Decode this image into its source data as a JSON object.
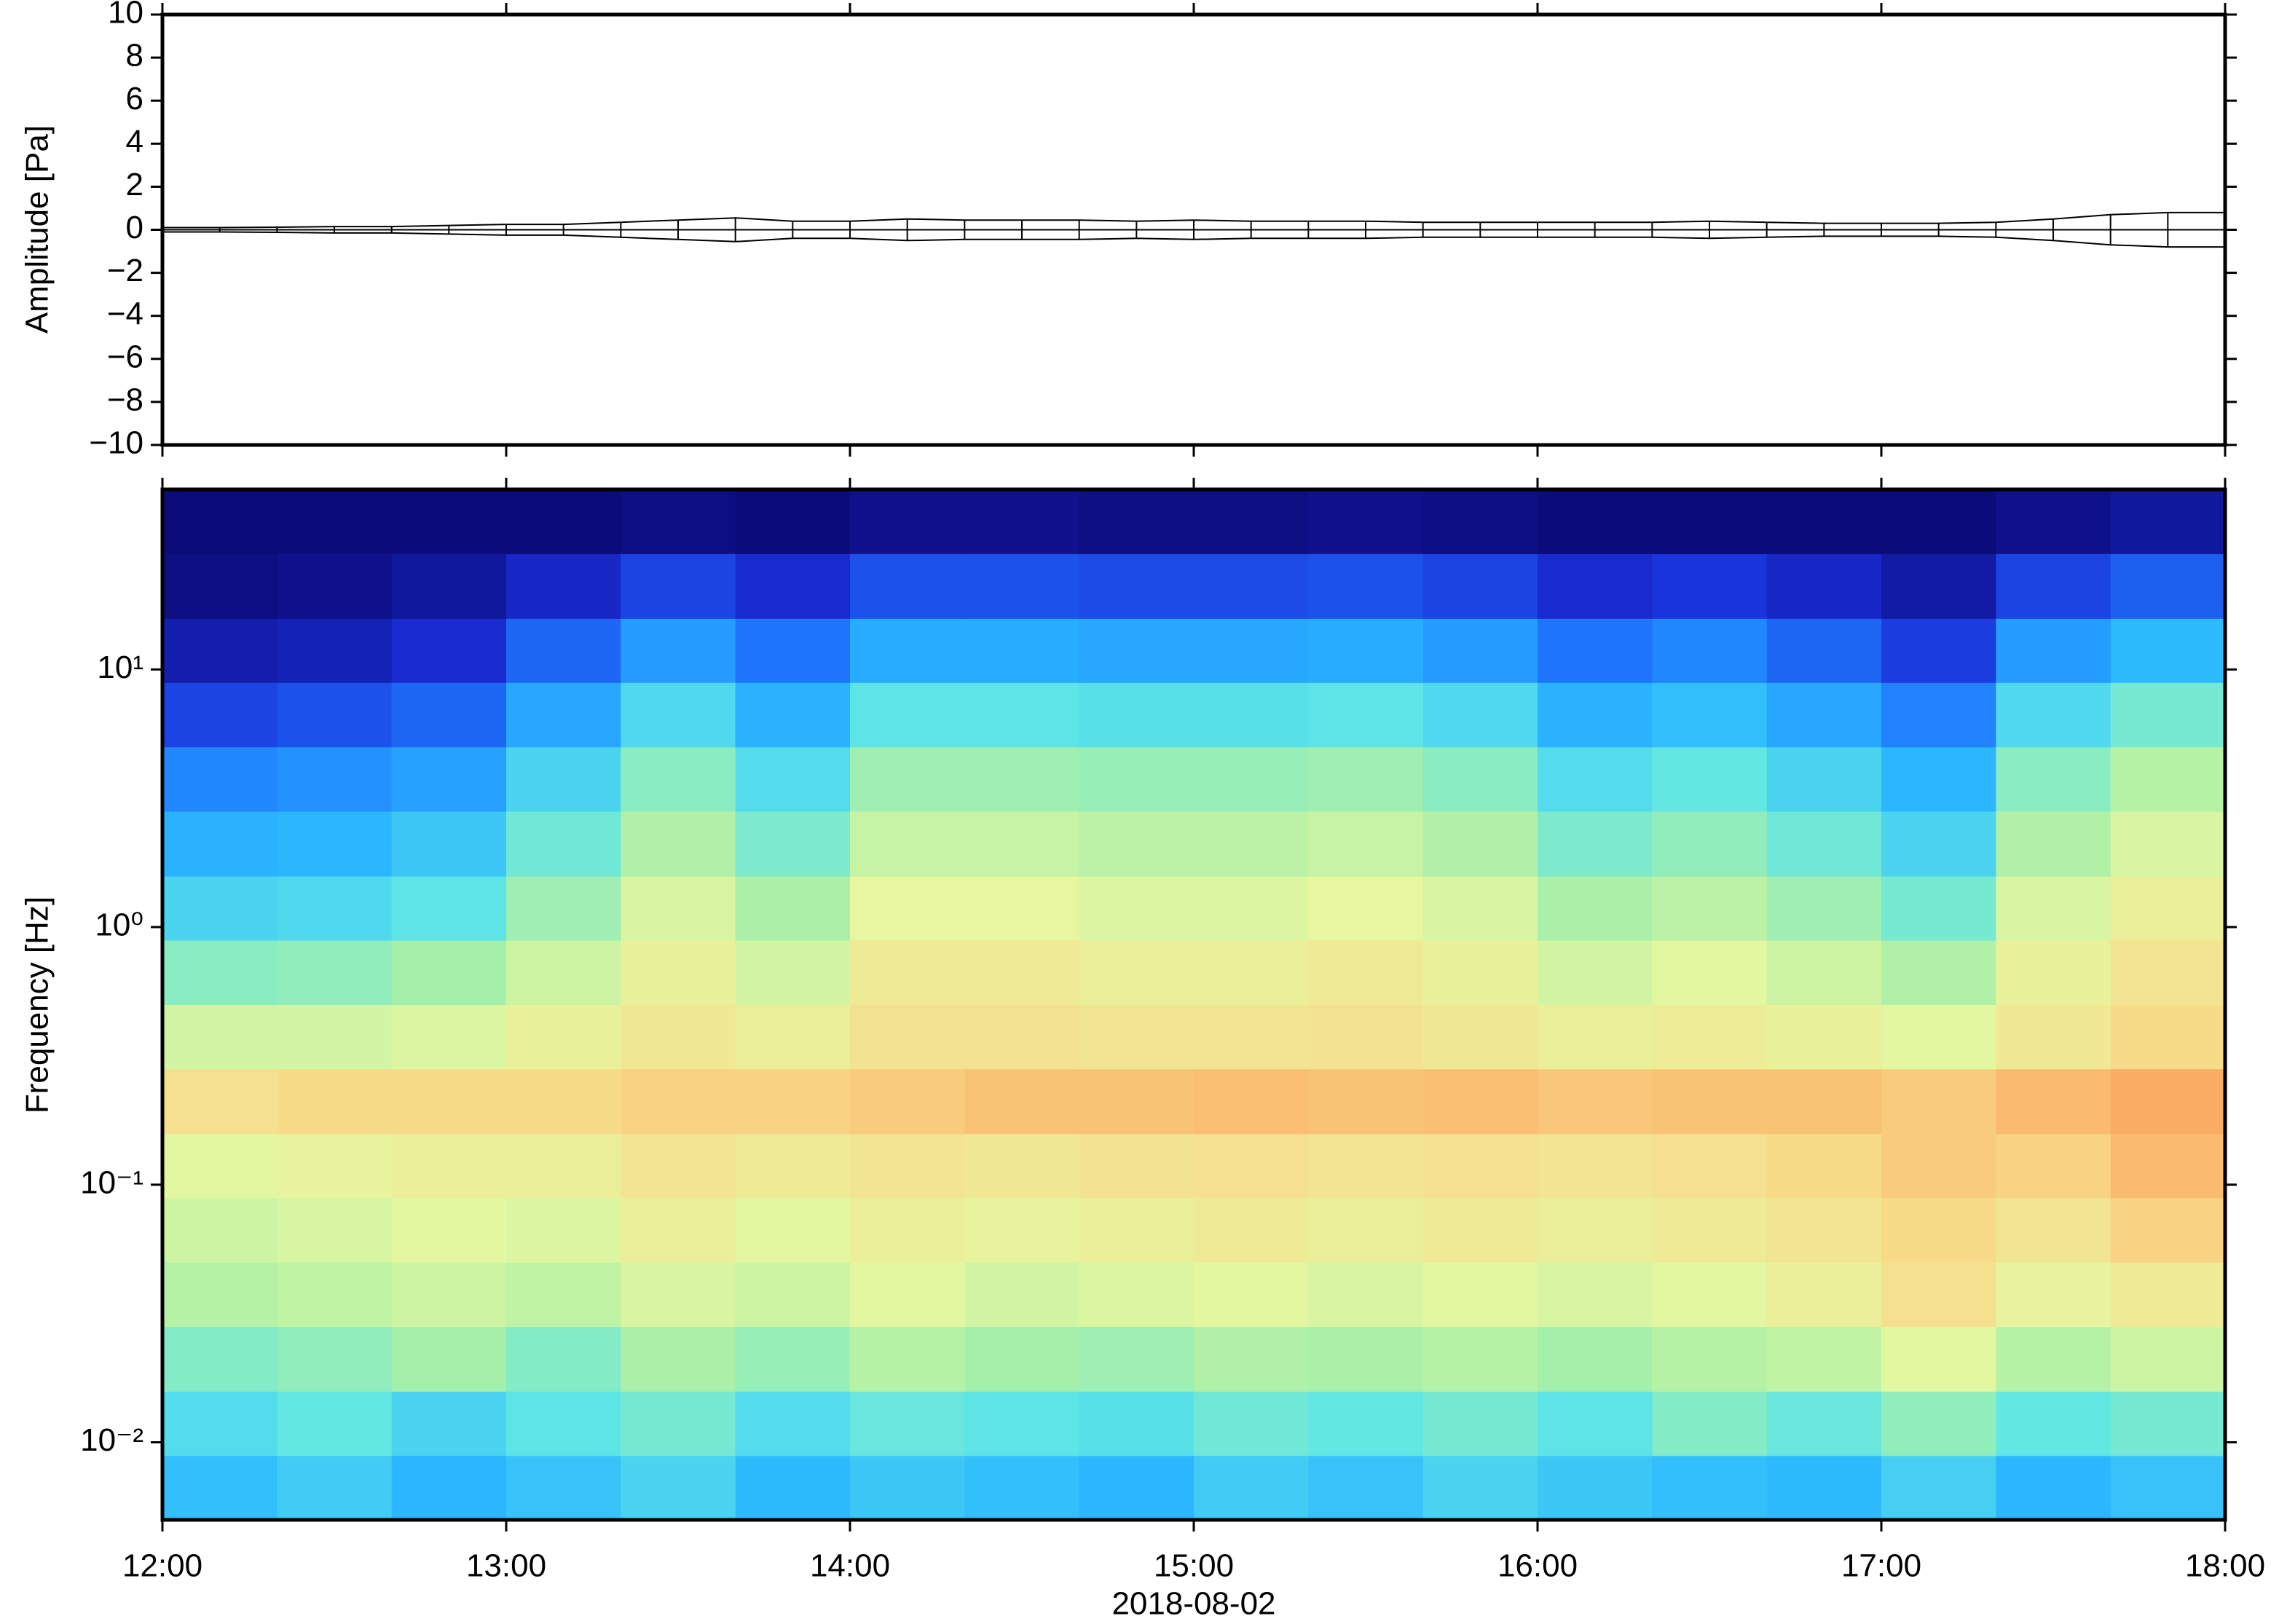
{
  "chart_data": [
    {
      "type": "envelope",
      "ylabel": "Amplitude [Pa]",
      "color": "#000000",
      "x": [
        "12:00",
        "12:10",
        "12:20",
        "12:30",
        "12:40",
        "12:50",
        "13:00",
        "13:10",
        "13:20",
        "13:30",
        "13:40",
        "13:50",
        "14:00",
        "14:10",
        "14:20",
        "14:30",
        "14:40",
        "14:50",
        "15:00",
        "15:10",
        "15:20",
        "15:30",
        "15:40",
        "15:50",
        "16:00",
        "16:10",
        "16:20",
        "16:30",
        "16:40",
        "16:50",
        "17:00",
        "17:10",
        "17:20",
        "17:30",
        "17:40",
        "17:50",
        "18:00"
      ],
      "values": [
        0.1,
        0.1,
        0.12,
        0.15,
        0.15,
        0.2,
        0.25,
        0.25,
        0.35,
        0.45,
        0.55,
        0.4,
        0.4,
        0.5,
        0.45,
        0.45,
        0.45,
        0.4,
        0.45,
        0.4,
        0.4,
        0.4,
        0.35,
        0.35,
        0.35,
        0.35,
        0.35,
        0.4,
        0.35,
        0.3,
        0.3,
        0.3,
        0.35,
        0.5,
        0.7,
        0.8,
        0.8
      ],
      "xlim": [
        "12:00",
        "18:00"
      ],
      "xticks": [
        "12:00",
        "13:00",
        "14:00",
        "15:00",
        "16:00",
        "17:00",
        "18:00"
      ],
      "ylim": [
        -10,
        10
      ],
      "yticks": [
        {
          "value": -10,
          "label": "−10"
        },
        {
          "value": -8,
          "label": "−8"
        },
        {
          "value": -6,
          "label": "−6"
        },
        {
          "value": -4,
          "label": "−4"
        },
        {
          "value": -2,
          "label": "−2"
        },
        0,
        2,
        4,
        6,
        8,
        10
      ]
    },
    {
      "type": "heatmap",
      "ylabel": "Frequency [Hz]",
      "xlabel": "2018-08-02",
      "logy": true,
      "x": [
        "12:00",
        "12:20",
        "12:40",
        "13:00",
        "13:20",
        "13:40",
        "14:00",
        "14:20",
        "14:40",
        "15:00",
        "15:20",
        "15:40",
        "16:00",
        "16:20",
        "16:40",
        "17:00",
        "17:20",
        "17:40",
        "18:00"
      ],
      "y_bins": [
        0.005,
        0.0089,
        0.0158,
        0.0282,
        0.0501,
        0.0891,
        0.158,
        0.282,
        0.501,
        0.891,
        1.58,
        2.82,
        5.01,
        8.91,
        15.8,
        28.2,
        50.1
      ],
      "colormap": [
        "#0b0b7a",
        "#1a2fd8",
        "#1f7eff",
        "#2bb8ff",
        "#5fe6e6",
        "#a8f0a8",
        "#e6f7a0",
        "#f7dc8a",
        "#fbb067",
        "#f07a4a"
      ],
      "z": [
        [
          0.35,
          0.38,
          0.33,
          0.36,
          0.4,
          0.34,
          0.37,
          0.35,
          0.33,
          0.38,
          0.36,
          0.4,
          0.37,
          0.35,
          0.34,
          0.39,
          0.33,
          0.36
        ],
        [
          0.42,
          0.45,
          0.4,
          0.44,
          0.48,
          0.42,
          0.46,
          0.44,
          0.43,
          0.47,
          0.45,
          0.48,
          0.44,
          0.5,
          0.46,
          0.52,
          0.45,
          0.48
        ],
        [
          0.5,
          0.52,
          0.55,
          0.5,
          0.56,
          0.53,
          0.58,
          0.55,
          0.54,
          0.57,
          0.56,
          0.58,
          0.55,
          0.58,
          0.6,
          0.66,
          0.58,
          0.62
        ],
        [
          0.58,
          0.6,
          0.62,
          0.6,
          0.64,
          0.62,
          0.66,
          0.63,
          0.65,
          0.66,
          0.64,
          0.66,
          0.64,
          0.66,
          0.7,
          0.76,
          0.68,
          0.72
        ],
        [
          0.62,
          0.64,
          0.66,
          0.65,
          0.7,
          0.66,
          0.7,
          0.68,
          0.7,
          0.72,
          0.7,
          0.72,
          0.7,
          0.72,
          0.74,
          0.78,
          0.74,
          0.8
        ],
        [
          0.66,
          0.68,
          0.7,
          0.7,
          0.74,
          0.72,
          0.74,
          0.73,
          0.75,
          0.76,
          0.74,
          0.76,
          0.74,
          0.76,
          0.78,
          0.82,
          0.8,
          0.86
        ],
        [
          0.76,
          0.78,
          0.78,
          0.78,
          0.8,
          0.8,
          0.82,
          0.84,
          0.84,
          0.85,
          0.84,
          0.85,
          0.83,
          0.84,
          0.84,
          0.82,
          0.86,
          0.9
        ],
        [
          0.63,
          0.63,
          0.65,
          0.69,
          0.73,
          0.7,
          0.75,
          0.75,
          0.74,
          0.74,
          0.75,
          0.73,
          0.7,
          0.71,
          0.69,
          0.66,
          0.73,
          0.78
        ],
        [
          0.51,
          0.52,
          0.55,
          0.62,
          0.69,
          0.63,
          0.72,
          0.72,
          0.7,
          0.7,
          0.72,
          0.69,
          0.63,
          0.66,
          0.62,
          0.57,
          0.69,
          0.74
        ],
        [
          0.4,
          0.41,
          0.44,
          0.54,
          0.64,
          0.56,
          0.67,
          0.67,
          0.65,
          0.65,
          0.67,
          0.64,
          0.56,
          0.59,
          0.54,
          0.48,
          0.64,
          0.7
        ],
        [
          0.32,
          0.33,
          0.37,
          0.47,
          0.57,
          0.49,
          0.61,
          0.61,
          0.59,
          0.59,
          0.61,
          0.57,
          0.49,
          0.52,
          0.47,
          0.4,
          0.57,
          0.64
        ],
        [
          0.24,
          0.26,
          0.29,
          0.4,
          0.51,
          0.42,
          0.54,
          0.54,
          0.53,
          0.53,
          0.54,
          0.51,
          0.42,
          0.45,
          0.4,
          0.33,
          0.51,
          0.58
        ],
        [
          0.14,
          0.16,
          0.19,
          0.3,
          0.41,
          0.32,
          0.44,
          0.44,
          0.43,
          0.43,
          0.44,
          0.41,
          0.32,
          0.35,
          0.3,
          0.23,
          0.41,
          0.48
        ],
        [
          0.06,
          0.07,
          0.1,
          0.19,
          0.28,
          0.21,
          0.31,
          0.31,
          0.3,
          0.3,
          0.31,
          0.28,
          0.21,
          0.24,
          0.19,
          0.13,
          0.28,
          0.34
        ],
        [
          0.01,
          0.02,
          0.04,
          0.09,
          0.14,
          0.1,
          0.16,
          0.16,
          0.15,
          0.15,
          0.16,
          0.14,
          0.1,
          0.12,
          0.09,
          0.05,
          0.14,
          0.18
        ],
        [
          0,
          0,
          0,
          0,
          0.01,
          0,
          0.02,
          0.02,
          0.01,
          0.01,
          0.02,
          0.01,
          0,
          0,
          0,
          0,
          0.02,
          0.04
        ]
      ],
      "xlim": [
        "12:00",
        "18:00"
      ],
      "xticks": [
        "12:00",
        "13:00",
        "14:00",
        "15:00",
        "16:00",
        "17:00",
        "18:00"
      ],
      "ylim": [
        0.005,
        50
      ],
      "yticks": [
        {
          "value": 0.01,
          "label": "10⁻²"
        },
        {
          "value": 0.1,
          "label": "10⁻¹"
        },
        {
          "value": 1,
          "label": "10⁰"
        },
        {
          "value": 10,
          "label": "10¹"
        }
      ]
    }
  ]
}
